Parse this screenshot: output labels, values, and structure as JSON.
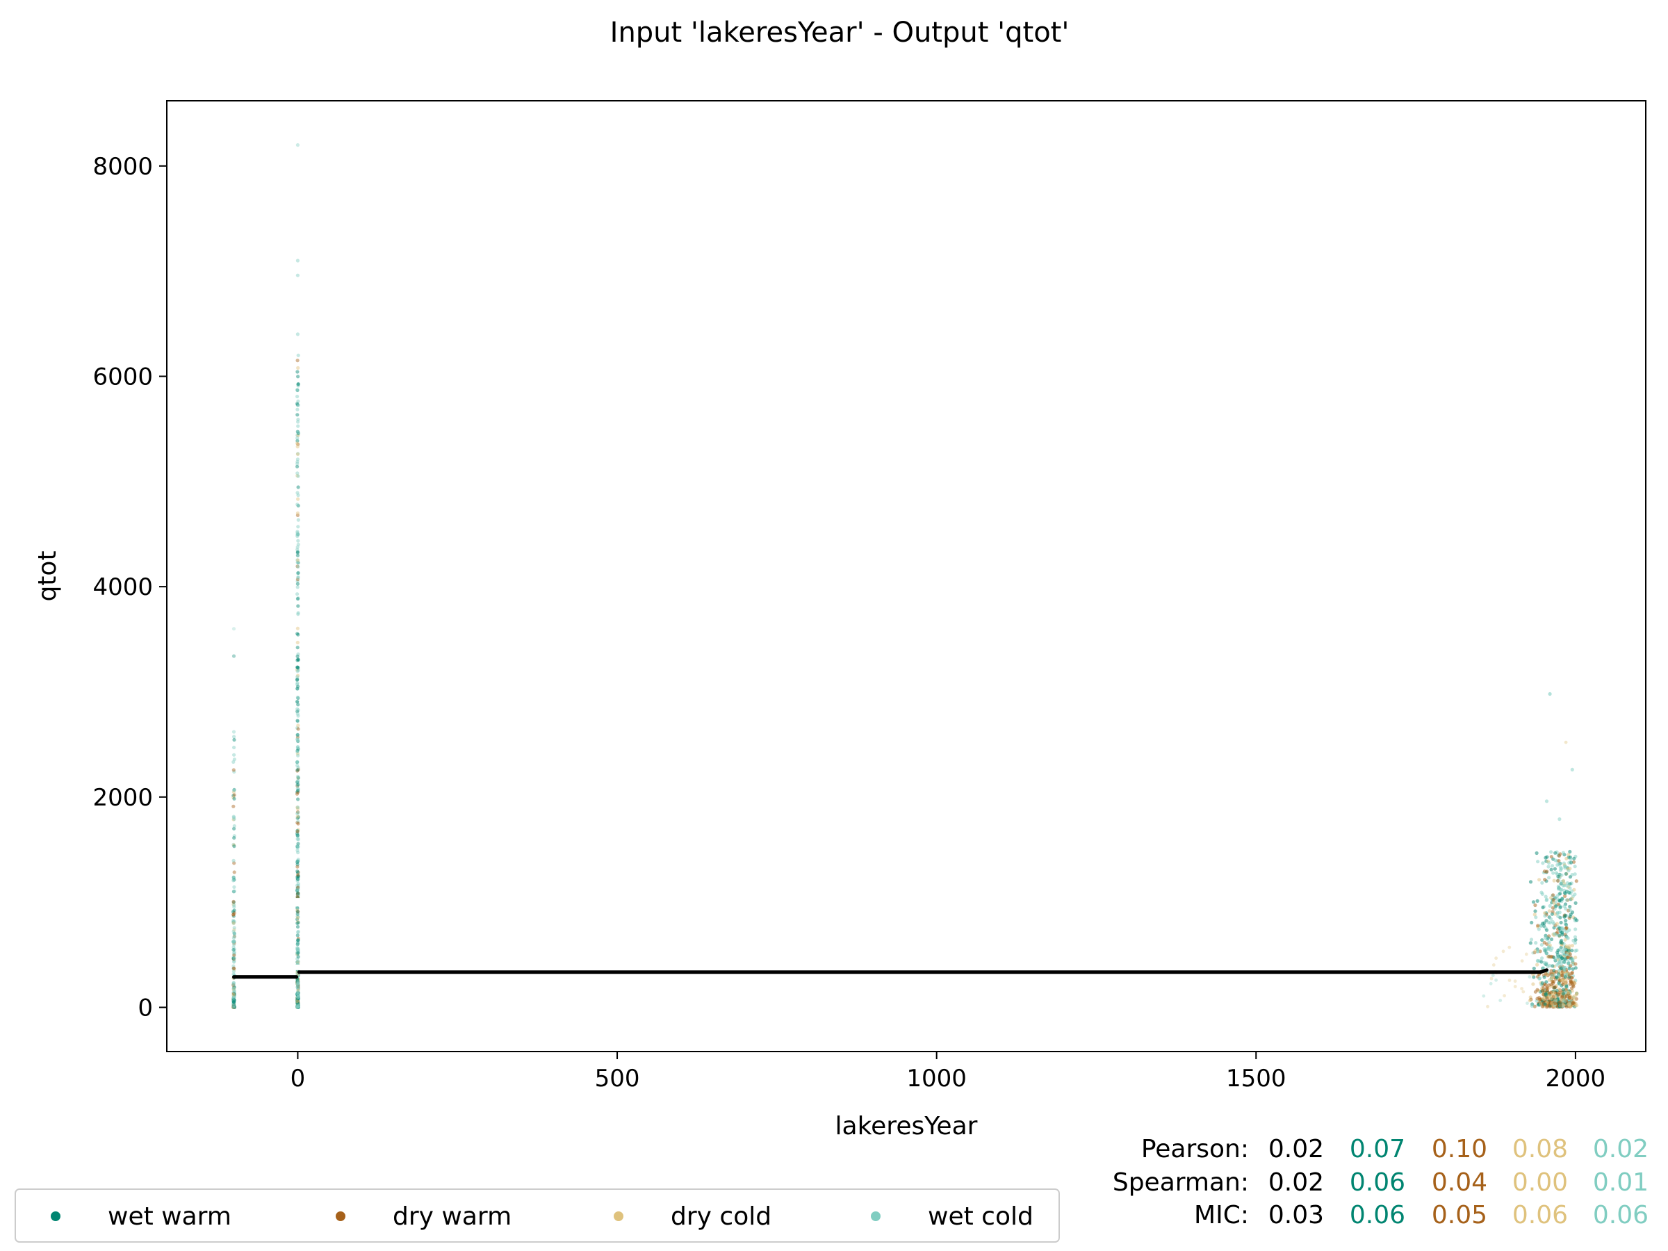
{
  "chart_data": {
    "type": "scatter",
    "title": "Input 'lakeresYear' - Output 'qtot'",
    "xlabel": "lakeresYear",
    "ylabel": "qtot",
    "xlim": [
      -205,
      2110
    ],
    "ylim": [
      -420,
      8620
    ],
    "x_ticks": [
      0,
      500,
      1000,
      1500,
      2000
    ],
    "y_ticks": [
      0,
      2000,
      4000,
      6000,
      8000
    ],
    "grid": false,
    "legend_position": "bottom-left",
    "series": [
      {
        "name": "wet warm",
        "color": "#018571"
      },
      {
        "name": "dry warm",
        "color": "#a6611a"
      },
      {
        "name": "dry cold",
        "color": "#dfc27d"
      },
      {
        "name": "wet cold",
        "color": "#80cdc1"
      }
    ],
    "clusters": [
      {
        "x": -100,
        "y_min": 0,
        "y_max": 3600,
        "note": "dense vertical strip"
      },
      {
        "x": 0,
        "y_min": 0,
        "y_max": 8200,
        "note": "dense vertical strip"
      },
      {
        "x_range": [
          1840,
          2000
        ],
        "y_min": 0,
        "y_max": 3000,
        "note": "scattered cloud"
      }
    ],
    "trend_line": [
      {
        "x": -100,
        "y": 290
      },
      {
        "x": -2,
        "y": 290
      },
      {
        "x": 2,
        "y": 335
      },
      {
        "x": 1945,
        "y": 335
      },
      {
        "x": 1955,
        "y": 355
      }
    ],
    "stats": [
      {
        "label": "Pearson:",
        "overall": "0.02",
        "values": [
          "0.07",
          "0.10",
          "0.08",
          "0.02"
        ]
      },
      {
        "label": "Spearman:",
        "overall": "0.02",
        "values": [
          "0.06",
          "0.04",
          "0.00",
          "0.01"
        ]
      },
      {
        "label": "MIC:",
        "overall": "0.03",
        "values": [
          "0.06",
          "0.05",
          "0.06",
          "0.06"
        ]
      }
    ]
  }
}
